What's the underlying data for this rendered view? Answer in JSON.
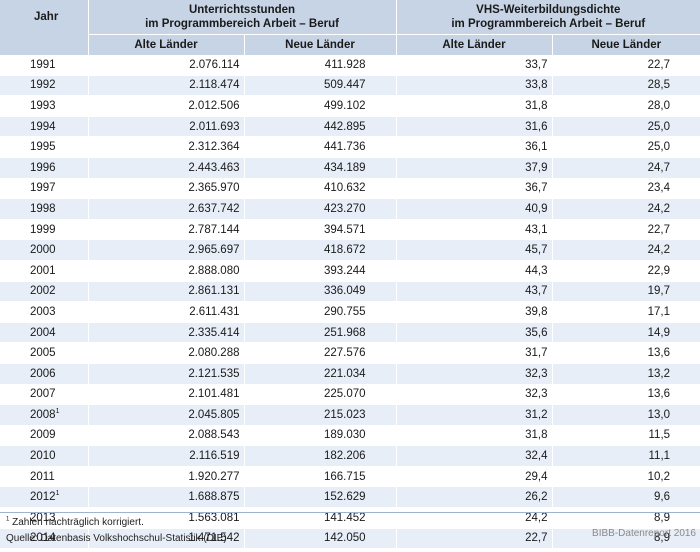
{
  "header": {
    "year": "Jahr",
    "group_left_line1": "Unterrichtsstunden",
    "group_left_line2": "im Programmbereich Arbeit – Beruf",
    "group_right_line1": "VHS-Weiterbildungsdichte",
    "group_right_line2": "im Programmbereich Arbeit – Beruf",
    "alte": "Alte Länder",
    "neue": "Neue Länder"
  },
  "rows": [
    {
      "year": "1991",
      "mark": "",
      "ust_alt": "2.076.114",
      "ust_neu": "411.928",
      "dichte_alt": "33,7",
      "dichte_neu": "22,7"
    },
    {
      "year": "1992",
      "mark": "",
      "ust_alt": "2.118.474",
      "ust_neu": "509.447",
      "dichte_alt": "33,8",
      "dichte_neu": "28,5"
    },
    {
      "year": "1993",
      "mark": "",
      "ust_alt": "2.012.506",
      "ust_neu": "499.102",
      "dichte_alt": "31,8",
      "dichte_neu": "28,0"
    },
    {
      "year": "1994",
      "mark": "",
      "ust_alt": "2.011.693",
      "ust_neu": "442.895",
      "dichte_alt": "31,6",
      "dichte_neu": "25,0"
    },
    {
      "year": "1995",
      "mark": "",
      "ust_alt": "2.312.364",
      "ust_neu": "441.736",
      "dichte_alt": "36,1",
      "dichte_neu": "25,0"
    },
    {
      "year": "1996",
      "mark": "",
      "ust_alt": "2.443.463",
      "ust_neu": "434.189",
      "dichte_alt": "37,9",
      "dichte_neu": "24,7"
    },
    {
      "year": "1997",
      "mark": "",
      "ust_alt": "2.365.970",
      "ust_neu": "410.632",
      "dichte_alt": "36,7",
      "dichte_neu": "23,4"
    },
    {
      "year": "1998",
      "mark": "",
      "ust_alt": "2.637.742",
      "ust_neu": "423.270",
      "dichte_alt": "40,9",
      "dichte_neu": "24,2"
    },
    {
      "year": "1999",
      "mark": "",
      "ust_alt": "2.787.144",
      "ust_neu": "394.571",
      "dichte_alt": "43,1",
      "dichte_neu": "22,7"
    },
    {
      "year": "2000",
      "mark": "",
      "ust_alt": "2.965.697",
      "ust_neu": "418.672",
      "dichte_alt": "45,7",
      "dichte_neu": "24,2"
    },
    {
      "year": "2001",
      "mark": "",
      "ust_alt": "2.888.080",
      "ust_neu": "393.244",
      "dichte_alt": "44,3",
      "dichte_neu": "22,9"
    },
    {
      "year": "2002",
      "mark": "",
      "ust_alt": "2.861.131",
      "ust_neu": "336.049",
      "dichte_alt": "43,7",
      "dichte_neu": "19,7"
    },
    {
      "year": "2003",
      "mark": "",
      "ust_alt": "2.611.431",
      "ust_neu": "290.755",
      "dichte_alt": "39,8",
      "dichte_neu": "17,1"
    },
    {
      "year": "2004",
      "mark": "",
      "ust_alt": "2.335.414",
      "ust_neu": "251.968",
      "dichte_alt": "35,6",
      "dichte_neu": "14,9"
    },
    {
      "year": "2005",
      "mark": "",
      "ust_alt": "2.080.288",
      "ust_neu": "227.576",
      "dichte_alt": "31,7",
      "dichte_neu": "13,6"
    },
    {
      "year": "2006",
      "mark": "",
      "ust_alt": "2.121.535",
      "ust_neu": "221.034",
      "dichte_alt": "32,3",
      "dichte_neu": "13,2"
    },
    {
      "year": "2007",
      "mark": "",
      "ust_alt": "2.101.481",
      "ust_neu": "225.070",
      "dichte_alt": "32,3",
      "dichte_neu": "13,6"
    },
    {
      "year": "2008",
      "mark": "1",
      "ust_alt": "2.045.805",
      "ust_neu": "215.023",
      "dichte_alt": "31,2",
      "dichte_neu": "13,0"
    },
    {
      "year": "2009",
      "mark": "",
      "ust_alt": "2.088.543",
      "ust_neu": "189.030",
      "dichte_alt": "31,8",
      "dichte_neu": "11,5"
    },
    {
      "year": "2010",
      "mark": "",
      "ust_alt": "2.116.519",
      "ust_neu": "182.206",
      "dichte_alt": "32,4",
      "dichte_neu": "11,1"
    },
    {
      "year": "2011",
      "mark": "",
      "ust_alt": "1.920.277",
      "ust_neu": "166.715",
      "dichte_alt": "29,4",
      "dichte_neu": "10,2"
    },
    {
      "year": "2012",
      "mark": "1",
      "ust_alt": "1.688.875",
      "ust_neu": "152.629",
      "dichte_alt": "26,2",
      "dichte_neu": "9,6"
    },
    {
      "year": "2013",
      "mark": "",
      "ust_alt": "1.563.081",
      "ust_neu": "141.452",
      "dichte_alt": "24,2",
      "dichte_neu": "8,9"
    },
    {
      "year": "2014",
      "mark": "",
      "ust_alt": "1.471.542",
      "ust_neu": "142.050",
      "dichte_alt": "22,7",
      "dichte_neu": "8,9"
    }
  ],
  "footnote": {
    "mark": "1",
    "text": "Zahlen nachträglich korrigiert."
  },
  "source": "Quelle: Datenbasis Volkshochschul-Statistik (DIE)",
  "credit": "BIBB-Datenreport 2016"
}
